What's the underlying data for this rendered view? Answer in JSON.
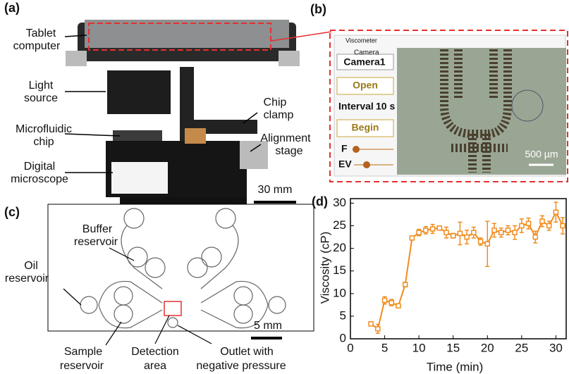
{
  "panels": {
    "a": {
      "tag": "(a)",
      "tablet": [
        "Tablet",
        "computer"
      ],
      "light": [
        "Light",
        "source"
      ],
      "chip": [
        "Microfluidic",
        "chip"
      ],
      "microscope": [
        "Digital",
        "microscope"
      ],
      "clamp": [
        "Chip",
        "clamp"
      ],
      "stage": [
        "Alignment",
        "stage"
      ],
      "scale": "30 mm"
    },
    "b": {
      "tag": "(b)",
      "window": "Viscometer",
      "camera_group": "Camera",
      "camera": "Camera1",
      "open": "Open",
      "interval": "Interval",
      "interval_value": "10 s",
      "begin": "Begin",
      "f": "F",
      "ev": "EV",
      "scale": "500 µm"
    },
    "c": {
      "tag": "(c)",
      "buffer": [
        "Buffer",
        "reservoir"
      ],
      "oil": [
        "Oil",
        "reservoir"
      ],
      "sample": [
        "Sample",
        "reservoir"
      ],
      "detection": [
        "Detection",
        "area"
      ],
      "outlet": [
        "Outlet with",
        "negative pressure"
      ],
      "scale": "5 mm"
    }
  },
  "chart_data": {
    "type": "line",
    "panel": "(d)",
    "x_label": "Time (min)",
    "y_label": "Viscosity (cP)",
    "xlim": [
      0,
      31.5
    ],
    "xticks": [
      0,
      5,
      10,
      15,
      20,
      25,
      30
    ],
    "ylim": [
      0,
      31
    ],
    "yticks": [
      0,
      5,
      10,
      15,
      20,
      25,
      30
    ],
    "x": [
      3,
      4,
      5,
      6,
      7,
      8,
      9,
      10,
      11,
      12,
      13,
      14,
      15,
      16,
      17,
      18,
      19,
      20,
      21,
      22,
      23,
      24,
      25,
      26,
      27,
      28,
      29,
      30,
      31
    ],
    "series": [
      {
        "color": "#f08c1e",
        "values": [
          3.3,
          2.2,
          8.5,
          8.0,
          7.3,
          12.0,
          22.3,
          23.5,
          24.0,
          24.3,
          24.5,
          23.5,
          22.8,
          23.3,
          22.5,
          23.5,
          21.5,
          21.0,
          24.0,
          23.5,
          24.0,
          23.5,
          25.0,
          25.5,
          22.5,
          26.0,
          25.0,
          28.0,
          25.0
        ],
        "errors": [
          0.3,
          1.0,
          0.8,
          0.7,
          0.4,
          0.5,
          0.4,
          0.7,
          0.8,
          1.0,
          0.4,
          1.2,
          0.5,
          2.5,
          1.5,
          1.2,
          0.8,
          5.0,
          1.5,
          1.0,
          1.0,
          1.5,
          1.5,
          1.2,
          1.3,
          1.2,
          1.0,
          2.2,
          1.8
        ]
      }
    ]
  }
}
